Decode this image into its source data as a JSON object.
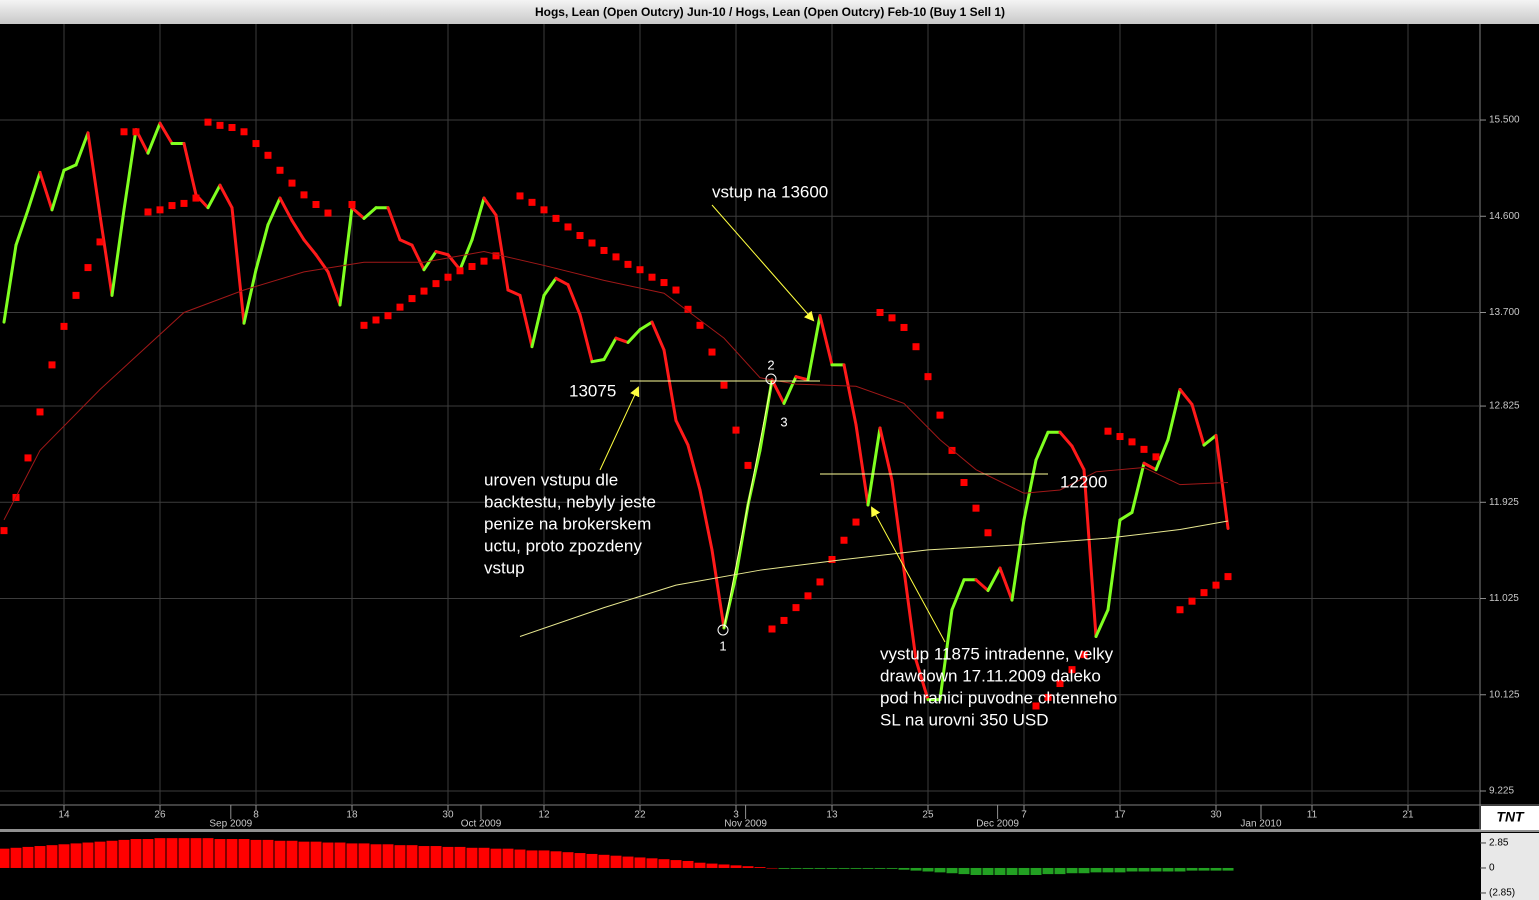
{
  "chart_data": [
    {
      "type": "line",
      "title": "Hogs, Lean (Open Outcry) Jun-10  / Hogs, Lean (Open Outcry) Feb-10 (Buy 1 Sell 1)",
      "logo": "TNT",
      "x": [
        0,
        1,
        2,
        3,
        4,
        5,
        6,
        7,
        8,
        9,
        10,
        11,
        12,
        13,
        14,
        15,
        16,
        17,
        18,
        19,
        20,
        21,
        22,
        23,
        24,
        25,
        26,
        27,
        28,
        29,
        30,
        31,
        32,
        33,
        34,
        35,
        36,
        37,
        38,
        39,
        40,
        41,
        42,
        43,
        44,
        45,
        46,
        47,
        48,
        49,
        50,
        51,
        52,
        53,
        54,
        55,
        56,
        57,
        58,
        59,
        60,
        61,
        62,
        63,
        64,
        65,
        66,
        67,
        68,
        69,
        70,
        71,
        72,
        73,
        74,
        75,
        76,
        77,
        78,
        79,
        80,
        81,
        82,
        83,
        84,
        85,
        86,
        87,
        88,
        89,
        90,
        91,
        92,
        93,
        94,
        95,
        96,
        97,
        98,
        99,
        100,
        101,
        102
      ],
      "xlim": [
        -0.333,
        123
      ],
      "ylim": [
        9.094,
        16.398
      ],
      "xticks": [
        {
          "value": 5,
          "label": "14"
        },
        {
          "value": 13,
          "label": "26"
        },
        {
          "value": 21,
          "label": "8"
        },
        {
          "value": 29,
          "label": "18"
        },
        {
          "value": 37,
          "label": "30"
        },
        {
          "value": 45,
          "label": "12"
        },
        {
          "value": 53,
          "label": "22"
        },
        {
          "value": 61,
          "label": "3"
        },
        {
          "value": 69,
          "label": "13"
        },
        {
          "value": 77,
          "label": "25"
        },
        {
          "value": 85,
          "label": "7"
        },
        {
          "value": 93,
          "label": "17"
        },
        {
          "value": 101,
          "label": "30"
        },
        {
          "value": 109,
          "label": "11"
        },
        {
          "value": 117,
          "label": "21"
        }
      ],
      "month_ticks": [
        {
          "value": 18.9,
          "label": "Sep 2009"
        },
        {
          "value": 39.75,
          "label": "Oct 2009"
        },
        {
          "value": 61.8,
          "label": "Nov 2009"
        },
        {
          "value": 82.8,
          "label": "Dec 2009"
        },
        {
          "value": 104.75,
          "label": "Jan 2010"
        }
      ],
      "yticks": [
        9.225,
        10.125,
        11.025,
        11.925,
        12.825,
        {
          "value": 13.7,
          "label": "13.700"
        },
        {
          "value": 14.6,
          "label": "14.600"
        },
        {
          "value": 15.5,
          "label": "15.500"
        }
      ],
      "grid": true,
      "series": [
        {
          "style": "updown",
          "up_color": "#80ff20",
          "down_color": "#ff1a1a",
          "values": [
            13.61,
            14.33,
            14.66,
            15.01,
            14.66,
            15.03,
            15.08,
            15.38,
            14.61,
            13.86,
            14.66,
            15.41,
            15.19,
            15.47,
            15.28,
            15.28,
            14.8,
            14.68,
            14.89,
            14.68,
            13.6,
            14.1,
            14.52,
            14.77,
            14.56,
            14.38,
            14.24,
            14.08,
            13.77,
            14.68,
            14.58,
            14.68,
            14.68,
            14.38,
            14.33,
            14.1,
            14.27,
            14.24,
            14.1,
            14.38,
            14.77,
            14.61,
            13.91,
            13.86,
            13.38,
            13.86,
            14.02,
            13.96,
            13.68,
            13.24,
            13.26,
            13.46,
            13.42,
            13.54,
            13.61,
            13.35,
            12.69,
            12.46,
            12.04,
            11.48,
            10.75,
            11.24,
            11.9,
            12.41,
            13.07,
            12.85,
            13.1,
            13.07,
            13.67,
            13.21,
            13.21,
            12.65,
            11.9,
            12.62,
            12.13,
            11.29,
            10.45,
            10.08,
            10.08,
            10.92,
            11.2,
            11.2,
            11.1,
            11.31,
            11.01,
            11.76,
            12.32,
            12.58,
            12.58,
            12.45,
            12.23,
            10.67,
            10.92,
            11.76,
            11.83,
            12.29,
            12.23,
            12.51,
            12.98,
            12.84,
            12.46,
            12.55,
            11.68
          ]
        },
        {
          "style": "square",
          "color": "#ff0000",
          "values": [
            11.66,
            11.97,
            12.34,
            12.77,
            13.21,
            13.57,
            13.86,
            14.12,
            14.36,
            null,
            15.39,
            15.39,
            14.64,
            14.66,
            14.7,
            14.72,
            14.77,
            15.48,
            15.45,
            15.43,
            15.39,
            15.28,
            15.17,
            15.03,
            14.91,
            14.8,
            14.71,
            14.63,
            null,
            14.71,
            13.58,
            13.63,
            13.67,
            13.75,
            13.83,
            13.9,
            13.97,
            14.03,
            14.09,
            14.13,
            14.18,
            14.23,
            null,
            14.79,
            14.73,
            14.66,
            14.58,
            14.5,
            14.42,
            14.35,
            14.28,
            14.22,
            14.15,
            14.1,
            14.03,
            13.98,
            13.91,
            13.73,
            13.58,
            13.33,
            13.02,
            12.6,
            12.27,
            null,
            10.74,
            10.82,
            10.94,
            11.05,
            11.18,
            11.39,
            11.57,
            11.74,
            null,
            13.7,
            13.65,
            13.56,
            13.38,
            13.1,
            12.74,
            12.41,
            12.11,
            11.87,
            11.64,
            null,
            null,
            null,
            10.02,
            10.1,
            10.23,
            10.36,
            10.5,
            null,
            12.59,
            12.54,
            12.49,
            12.42,
            12.35,
            null,
            10.92,
            11.0,
            11.08,
            11.15,
            11.23
          ]
        },
        {
          "style": "thin",
          "color": "#a01818",
          "x": [
            0,
            3,
            8,
            15,
            20,
            25,
            30,
            35,
            40,
            45,
            50,
            55,
            60,
            63,
            66,
            71,
            75,
            78,
            81,
            85,
            88,
            91,
            95,
            98,
            102
          ],
          "values": [
            11.76,
            12.41,
            12.98,
            13.7,
            13.91,
            14.08,
            14.17,
            14.17,
            14.27,
            14.14,
            14.0,
            13.88,
            13.46,
            13.09,
            13.03,
            13.01,
            12.85,
            12.51,
            12.23,
            12.01,
            12.04,
            12.21,
            12.25,
            12.09,
            12.11
          ]
        },
        {
          "style": "thin",
          "color": "#e8e890",
          "x": [
            43,
            50,
            56,
            63,
            70,
            77,
            85,
            92,
            98,
            102
          ],
          "values": [
            10.67,
            10.94,
            11.15,
            11.29,
            11.39,
            11.48,
            11.53,
            11.59,
            11.67,
            11.75
          ]
        }
      ],
      "annotations": {
        "entry": "vstup na 13600",
        "level_high": "13075",
        "level_low": "12200",
        "backtest": [
          "uroven vstupu dle",
          "backtestu, nebyly jeste",
          "penize na brokerskem",
          "uctu, proto zpozdeny",
          "vstup"
        ],
        "exit": [
          "vystup 11875 intradenne, velky",
          "drawdown 17.11.2009 daleko",
          "pod hranici puvodne chtenneho",
          "SL na urovni 350 USD"
        ],
        "point_1": "1",
        "point_2": "2",
        "point_3": "3"
      }
    },
    {
      "type": "bar",
      "x": [
        0,
        1,
        2,
        3,
        4,
        5,
        6,
        7,
        8,
        9,
        10,
        11,
        12,
        13,
        14,
        15,
        16,
        17,
        18,
        19,
        20,
        21,
        22,
        23,
        24,
        25,
        26,
        27,
        28,
        29,
        30,
        31,
        32,
        33,
        34,
        35,
        36,
        37,
        38,
        39,
        40,
        41,
        42,
        43,
        44,
        45,
        46,
        47,
        48,
        49,
        50,
        51,
        52,
        53,
        54,
        55,
        56,
        57,
        58,
        59,
        60,
        61,
        62,
        63,
        64,
        65,
        66,
        67,
        68,
        69,
        70,
        71,
        72,
        73,
        74,
        75,
        76,
        77,
        78,
        79,
        80,
        81,
        82,
        83,
        84,
        85,
        86,
        87,
        88,
        89,
        90,
        91,
        92,
        93,
        94,
        95,
        96,
        97,
        98,
        99,
        100,
        101,
        102
      ],
      "ylim": [
        -3.65,
        4.1
      ],
      "yticks": [
        2.85,
        0,
        {
          "value": -2.85,
          "label": "(2.85)"
        }
      ],
      "pos_color": "#ff0000",
      "neg_color": "#22a022",
      "values": [
        2.2,
        2.3,
        2.4,
        2.5,
        2.6,
        2.7,
        2.8,
        2.9,
        3.0,
        3.1,
        3.2,
        3.3,
        3.3,
        3.4,
        3.4,
        3.4,
        3.4,
        3.4,
        3.3,
        3.3,
        3.3,
        3.2,
        3.2,
        3.1,
        3.1,
        3.0,
        3.0,
        2.9,
        2.9,
        2.8,
        2.8,
        2.7,
        2.7,
        2.6,
        2.6,
        2.5,
        2.5,
        2.4,
        2.4,
        2.3,
        2.3,
        2.2,
        2.2,
        2.1,
        2.0,
        2.0,
        1.9,
        1.8,
        1.7,
        1.6,
        1.5,
        1.4,
        1.3,
        1.2,
        1.1,
        1.0,
        0.9,
        0.8,
        0.6,
        0.5,
        0.4,
        0.3,
        0.2,
        0.1,
        0.0,
        -0.1,
        -0.1,
        -0.1,
        -0.1,
        -0.1,
        -0.1,
        -0.1,
        -0.1,
        -0.1,
        -0.1,
        -0.2,
        -0.3,
        -0.4,
        -0.5,
        -0.6,
        -0.7,
        -0.8,
        -0.8,
        -0.8,
        -0.8,
        -0.8,
        -0.8,
        -0.7,
        -0.7,
        -0.6,
        -0.6,
        -0.5,
        -0.5,
        -0.5,
        -0.4,
        -0.4,
        -0.4,
        -0.4,
        -0.4,
        -0.3,
        -0.3,
        -0.3,
        -0.3
      ]
    }
  ]
}
